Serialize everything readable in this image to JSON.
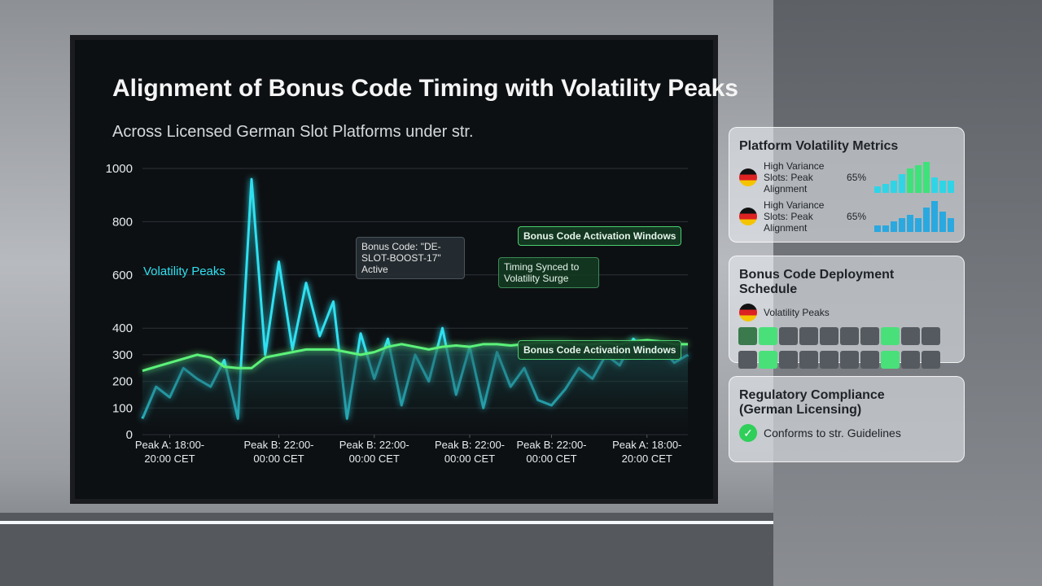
{
  "chart_data": {
    "type": "line",
    "title": "Alignment of Bonus Code Timing with Volatility Peaks",
    "subtitle": "Across Licensed German Slot Platforms under str.",
    "x": [
      0,
      1,
      2,
      3,
      4,
      5,
      6,
      7,
      8,
      9,
      10,
      11,
      12,
      13,
      14,
      15,
      16,
      17,
      18,
      19,
      20,
      21,
      22,
      23,
      24,
      25,
      26,
      27,
      28,
      29,
      30,
      31,
      32,
      33,
      34,
      35,
      36,
      37,
      38,
      39,
      40
    ],
    "xlim": [
      0,
      40
    ],
    "xticks": [
      {
        "value": 2,
        "label": "Peak A: 18:00-20:00 CET"
      },
      {
        "value": 10,
        "label": "Peak B: 22:00-00:00 CET"
      },
      {
        "value": 17,
        "label": "Peak B: 22:00-00:00 CET"
      },
      {
        "value": 24,
        "label": "Peak B: 22:00-00:00 CET"
      },
      {
        "value": 30,
        "label": "Peak B: 22:00-00:00 CET"
      },
      {
        "value": 37,
        "label": "Peak A: 18:00-20:00 CET"
      }
    ],
    "ylim": [
      0,
      1000
    ],
    "yticks": [
      0,
      100,
      200,
      300,
      400,
      600,
      800,
      1000
    ],
    "grid": true,
    "series": [
      {
        "name": "Volatility Peaks",
        "color": "#2fe0f0",
        "values": [
          60,
          180,
          140,
          250,
          210,
          180,
          280,
          60,
          960,
          300,
          650,
          320,
          570,
          370,
          500,
          60,
          380,
          210,
          360,
          110,
          300,
          200,
          400,
          150,
          330,
          100,
          310,
          180,
          250,
          130,
          110,
          170,
          250,
          210,
          300,
          260,
          360,
          300,
          330,
          270,
          300
        ]
      },
      {
        "name": "Bonus Code Activation Windows",
        "color": "#5cf27a",
        "values": [
          240,
          255,
          270,
          285,
          300,
          290,
          255,
          250,
          250,
          290,
          300,
          310,
          320,
          320,
          320,
          310,
          300,
          310,
          330,
          340,
          330,
          320,
          330,
          335,
          330,
          340,
          340,
          335,
          340,
          345,
          345,
          345,
          340,
          340,
          345,
          340,
          350,
          355,
          350,
          340,
          340
        ]
      }
    ],
    "annotations": [
      "Bonus Code: \"DE-SLOT-BOOST-17\" Active",
      "Timing Synced to Volatility Surge",
      "Bonus Code Activation Windows"
    ]
  },
  "panels": {
    "metrics": {
      "title": "Platform Volatility Metrics",
      "rows": [
        {
          "label": "High Variance Slots: Peak Alignment",
          "value": "65%",
          "bars": [
            2,
            3,
            4,
            6,
            8,
            9,
            10,
            5,
            4,
            4
          ]
        },
        {
          "label": "High Variance Slots: Peak Alignment",
          "value": "65%",
          "bars": [
            2,
            2,
            3,
            4,
            5,
            4,
            7,
            9,
            6,
            4
          ]
        }
      ]
    },
    "schedule": {
      "title": "Bonus Code Deployment Schedule",
      "legend": "Volatility Peaks"
    },
    "compliance": {
      "title": "Regulatory Compliance (German Licensing)",
      "status": "Conforms to str. Guidelines"
    }
  }
}
